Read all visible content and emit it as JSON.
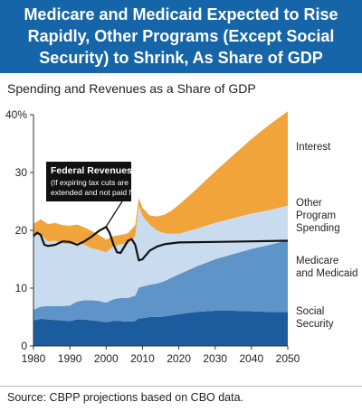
{
  "header": {
    "title_lines": [
      "Medicare and Medicaid Expected to Rise",
      "Rapidly, Other Programs (Except Social",
      "Security) to Shrink, As Share of GDP"
    ]
  },
  "subtitle": "Spending and Revenues as a Share of GDP",
  "source": "Source: CBPP projections based on CBO data.",
  "colors": {
    "header_bg": "#1565a8",
    "social_security": "#1b5c9e",
    "medicare_medicaid": "#5f94c9",
    "other_program": "#c9dcef",
    "interest": "#f0a43a",
    "revenues": "#111111",
    "callout_bg": "#111111"
  },
  "chart_data": {
    "type": "area",
    "title": "Spending and Revenues as a Share of GDP",
    "xlabel": "",
    "ylabel": "",
    "xlim": [
      1980,
      2050
    ],
    "ylim": [
      0,
      40
    ],
    "x_ticks": [
      "1980",
      "1990",
      "2000",
      "2010",
      "2020",
      "2030",
      "2040",
      "2050"
    ],
    "y_ticks": [
      "0",
      "10",
      "20",
      "30",
      "40%"
    ],
    "x": [
      1980,
      1982,
      1984,
      1986,
      1988,
      1990,
      1992,
      1994,
      1996,
      1998,
      2000,
      2002,
      2004,
      2006,
      2008,
      2009,
      2010,
      2012,
      2014,
      2016,
      2018,
      2020,
      2025,
      2030,
      2035,
      2040,
      2045,
      2050
    ],
    "series": [
      {
        "name": "Social Security",
        "label_lines": [
          "Social",
          "Security"
        ],
        "color": "#1b5c9e",
        "values": [
          4.4,
          4.7,
          4.6,
          4.5,
          4.4,
          4.3,
          4.6,
          4.6,
          4.4,
          4.3,
          4.1,
          4.3,
          4.3,
          4.2,
          4.3,
          4.8,
          4.8,
          5.0,
          5.0,
          5.1,
          5.3,
          5.5,
          5.9,
          6.1,
          6.1,
          6.0,
          5.9,
          5.9
        ]
      },
      {
        "name": "Medicare and Medicaid",
        "label_lines": [
          "Medicare",
          "and Medicaid"
        ],
        "color": "#5f94c9",
        "values": [
          1.9,
          2.1,
          2.3,
          2.4,
          2.5,
          2.7,
          3.1,
          3.3,
          3.5,
          3.5,
          3.4,
          3.8,
          4.0,
          4.1,
          4.4,
          5.3,
          5.5,
          5.6,
          5.8,
          6.1,
          6.5,
          6.9,
          7.9,
          8.9,
          9.8,
          10.8,
          11.6,
          12.4
        ]
      },
      {
        "name": "Other Program Spending",
        "label_lines": [
          "Other",
          "Program",
          "Spending"
        ],
        "color": "#c9dcef",
        "values": [
          12.8,
          12.5,
          11.2,
          11.3,
          10.8,
          10.6,
          10.2,
          9.6,
          9.0,
          8.8,
          8.7,
          9.1,
          9.3,
          9.4,
          10.3,
          14.2,
          12.2,
          10.4,
          9.2,
          8.3,
          7.6,
          7.0,
          6.5,
          6.3,
          6.2,
          6.1,
          6.0,
          6.0
        ]
      },
      {
        "name": "Interest",
        "label_lines": [
          "Interest"
        ],
        "color": "#f0a43a",
        "values": [
          2.0,
          2.6,
          3.0,
          3.1,
          3.2,
          3.2,
          3.1,
          3.0,
          3.0,
          2.6,
          2.2,
          1.8,
          1.6,
          1.8,
          1.9,
          1.3,
          1.4,
          1.6,
          2.4,
          3.2,
          4.0,
          5.0,
          6.9,
          8.9,
          10.9,
          12.9,
          14.8,
          16.3
        ]
      }
    ],
    "line_series": {
      "name": "Federal Revenues",
      "note_lines": [
        "(If expiring tax cuts are",
        "extended and not paid for)"
      ],
      "x": [
        1980,
        1981,
        1982,
        1983,
        1984,
        1986,
        1988,
        1990,
        1992,
        1994,
        1996,
        1998,
        2000,
        2001,
        2002,
        2003,
        2004,
        2006,
        2007,
        2008,
        2009,
        2010,
        2012,
        2014,
        2016,
        2020,
        2030,
        2040,
        2050
      ],
      "values": [
        19.0,
        19.6,
        19.2,
        17.5,
        17.3,
        17.5,
        18.1,
        18.0,
        17.5,
        18.1,
        18.9,
        19.9,
        20.6,
        19.5,
        17.6,
        16.2,
        16.1,
        18.2,
        18.5,
        17.5,
        14.8,
        15.0,
        16.5,
        17.2,
        17.6,
        17.9,
        18.0,
        18.1,
        18.2
      ]
    }
  }
}
